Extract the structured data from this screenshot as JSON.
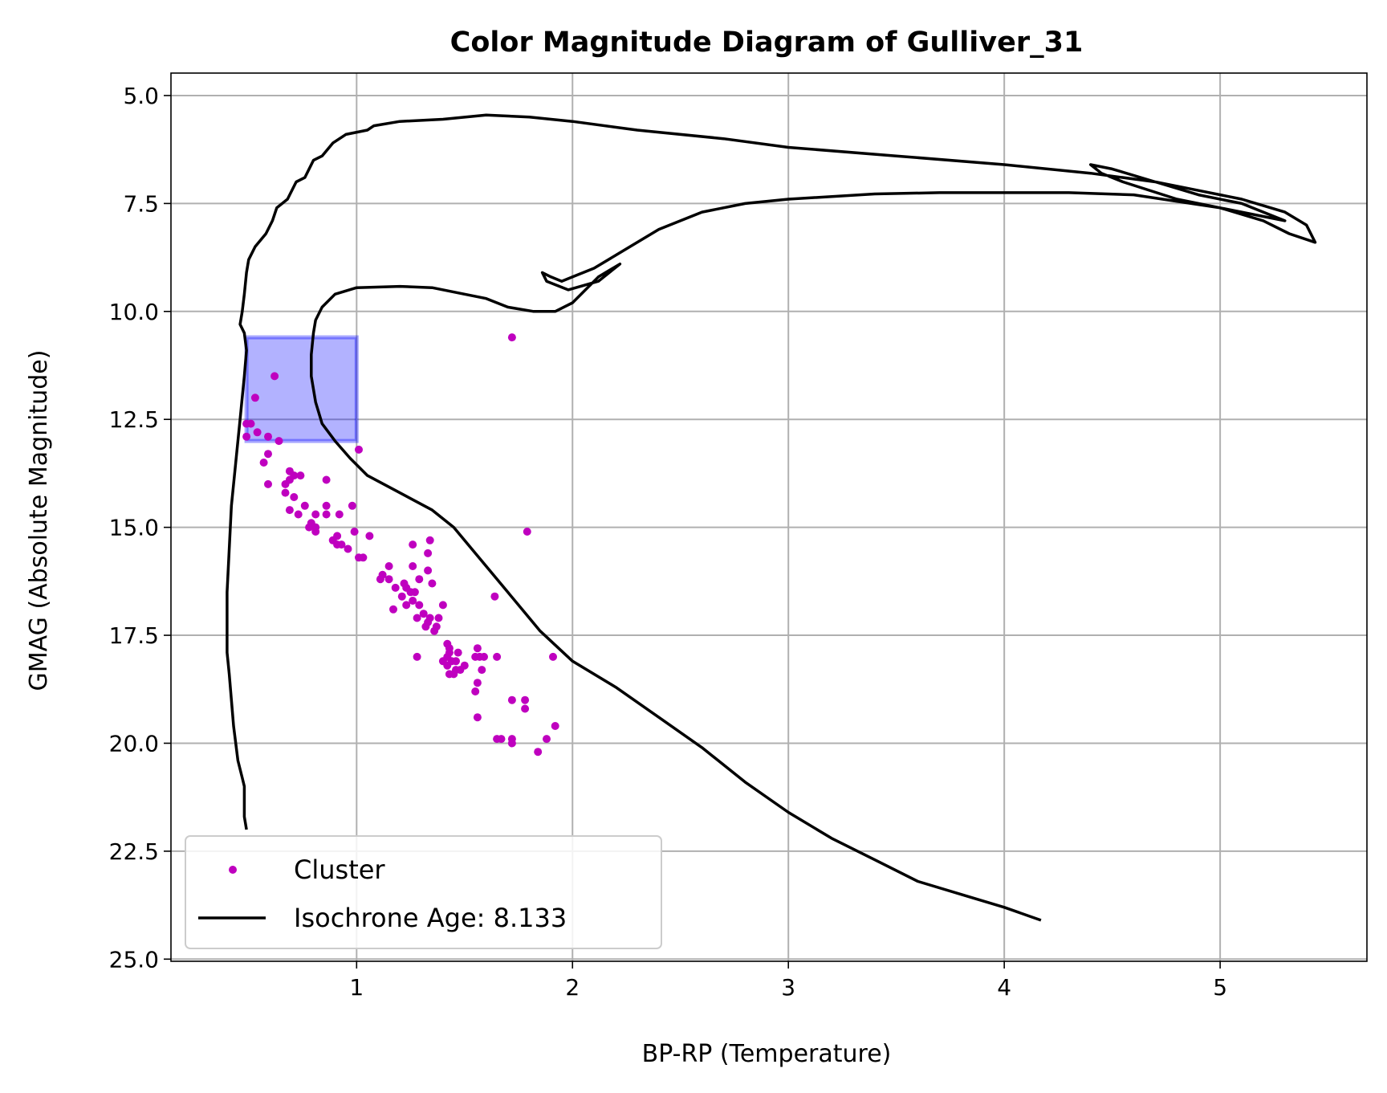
{
  "chart_data": {
    "type": "scatter",
    "title": "Color Magnitude Diagram of Gulliver_31",
    "xlabel": "BP-RP (Temperature)",
    "ylabel": "GMAG (Absolute Magnitude)",
    "xlim": [
      0.14,
      5.68
    ],
    "ylim": [
      25.05,
      4.48
    ],
    "y_inverted": true,
    "x_ticks": [
      1,
      2,
      3,
      4,
      5
    ],
    "x_tick_labels": [
      "1",
      "2",
      "3",
      "4",
      "5"
    ],
    "y_ticks": [
      5.0,
      7.5,
      10.0,
      12.5,
      15.0,
      17.5,
      20.0,
      22.5,
      25.0
    ],
    "y_tick_labels": [
      "5.0",
      "7.5",
      "10.0",
      "12.5",
      "15.0",
      "17.5",
      "20.0",
      "22.5",
      "25.0"
    ],
    "grid": true,
    "legend_position": "lower-left",
    "colors": {
      "cluster": "#bf00bf",
      "isochrone": "#000000",
      "highlight_fill": "#0000ff",
      "highlight_edge": "#0000ff",
      "grid": "#b0b0b0"
    },
    "legend": [
      {
        "label": "Cluster",
        "kind": "marker",
        "color": "#bf00bf"
      },
      {
        "label": "Isochrone Age: 8.133",
        "kind": "line",
        "color": "#000000"
      }
    ],
    "highlight_box": {
      "x0": 0.49,
      "x1": 1.0,
      "y0": 10.6,
      "y1": 13.0,
      "opacity": 0.3
    },
    "series": [
      {
        "name": "Cluster",
        "type": "scatter",
        "points": [
          [
            1.72,
            10.6
          ],
          [
            0.62,
            11.5
          ],
          [
            0.53,
            12.0
          ],
          [
            0.51,
            12.6
          ],
          [
            0.49,
            12.6
          ],
          [
            0.54,
            12.8
          ],
          [
            0.59,
            12.9
          ],
          [
            0.64,
            13.0
          ],
          [
            0.49,
            12.9
          ],
          [
            1.01,
            13.2
          ],
          [
            0.59,
            13.3
          ],
          [
            0.57,
            13.5
          ],
          [
            0.69,
            13.7
          ],
          [
            0.74,
            13.8
          ],
          [
            0.71,
            13.8
          ],
          [
            0.69,
            13.9
          ],
          [
            0.67,
            14.0
          ],
          [
            0.59,
            14.0
          ],
          [
            0.86,
            13.9
          ],
          [
            0.67,
            14.2
          ],
          [
            0.71,
            14.3
          ],
          [
            0.76,
            14.5
          ],
          [
            0.86,
            14.5
          ],
          [
            0.98,
            14.5
          ],
          [
            0.69,
            14.6
          ],
          [
            0.73,
            14.7
          ],
          [
            0.81,
            14.7
          ],
          [
            0.86,
            14.7
          ],
          [
            0.92,
            14.7
          ],
          [
            0.79,
            14.9
          ],
          [
            0.81,
            15.0
          ],
          [
            0.78,
            15.0
          ],
          [
            0.81,
            15.1
          ],
          [
            0.99,
            15.1
          ],
          [
            1.79,
            15.1
          ],
          [
            0.91,
            15.2
          ],
          [
            1.06,
            15.2
          ],
          [
            0.89,
            15.3
          ],
          [
            1.34,
            15.3
          ],
          [
            0.93,
            15.4
          ],
          [
            0.91,
            15.4
          ],
          [
            1.26,
            15.4
          ],
          [
            0.96,
            15.5
          ],
          [
            1.33,
            15.6
          ],
          [
            1.01,
            15.7
          ],
          [
            1.03,
            15.7
          ],
          [
            1.15,
            15.9
          ],
          [
            1.26,
            15.9
          ],
          [
            1.33,
            16.0
          ],
          [
            1.12,
            16.1
          ],
          [
            1.15,
            16.2
          ],
          [
            1.11,
            16.2
          ],
          [
            1.29,
            16.2
          ],
          [
            1.22,
            16.3
          ],
          [
            1.35,
            16.3
          ],
          [
            1.18,
            16.4
          ],
          [
            1.23,
            16.4
          ],
          [
            1.25,
            16.5
          ],
          [
            1.27,
            16.5
          ],
          [
            1.21,
            16.6
          ],
          [
            1.64,
            16.6
          ],
          [
            1.26,
            16.7
          ],
          [
            1.23,
            16.8
          ],
          [
            1.29,
            16.8
          ],
          [
            1.4,
            16.8
          ],
          [
            1.17,
            16.9
          ],
          [
            1.31,
            17.0
          ],
          [
            1.34,
            17.1
          ],
          [
            1.28,
            17.1
          ],
          [
            1.38,
            17.1
          ],
          [
            1.33,
            17.2
          ],
          [
            1.32,
            17.3
          ],
          [
            1.37,
            17.3
          ],
          [
            1.36,
            17.4
          ],
          [
            1.42,
            17.7
          ],
          [
            1.43,
            17.8
          ],
          [
            1.56,
            17.8
          ],
          [
            1.43,
            17.9
          ],
          [
            1.47,
            17.9
          ],
          [
            1.42,
            18.0
          ],
          [
            1.55,
            18.0
          ],
          [
            1.57,
            18.0
          ],
          [
            1.59,
            18.0
          ],
          [
            1.65,
            18.0
          ],
          [
            1.91,
            18.0
          ],
          [
            1.28,
            18.0
          ],
          [
            1.4,
            18.1
          ],
          [
            1.44,
            18.1
          ],
          [
            1.46,
            18.1
          ],
          [
            1.42,
            18.2
          ],
          [
            1.5,
            18.2
          ],
          [
            1.46,
            18.3
          ],
          [
            1.48,
            18.3
          ],
          [
            1.58,
            18.3
          ],
          [
            1.43,
            18.4
          ],
          [
            1.45,
            18.4
          ],
          [
            1.56,
            18.6
          ],
          [
            1.55,
            18.8
          ],
          [
            1.72,
            19.0
          ],
          [
            1.78,
            19.0
          ],
          [
            1.78,
            19.2
          ],
          [
            1.56,
            19.4
          ],
          [
            1.92,
            19.6
          ],
          [
            1.65,
            19.9
          ],
          [
            1.67,
            19.9
          ],
          [
            1.72,
            19.9
          ],
          [
            1.88,
            19.9
          ],
          [
            1.72,
            20.0
          ],
          [
            1.84,
            20.2
          ]
        ]
      },
      {
        "name": "Isochrone Age: 8.133",
        "type": "line",
        "points": [
          [
            0.49,
            22.0
          ],
          [
            0.48,
            21.7
          ],
          [
            0.48,
            21.0
          ],
          [
            0.47,
            20.8
          ],
          [
            0.45,
            20.4
          ],
          [
            0.43,
            19.6
          ],
          [
            0.42,
            19.0
          ],
          [
            0.41,
            18.4
          ],
          [
            0.4,
            17.9
          ],
          [
            0.4,
            17.4
          ],
          [
            0.4,
            16.5
          ],
          [
            0.41,
            15.5
          ],
          [
            0.42,
            14.5
          ],
          [
            0.44,
            13.5
          ],
          [
            0.46,
            12.5
          ],
          [
            0.48,
            11.5
          ],
          [
            0.49,
            10.9
          ],
          [
            0.48,
            10.5
          ],
          [
            0.46,
            10.3
          ],
          [
            0.47,
            10.0
          ],
          [
            0.48,
            9.6
          ],
          [
            0.49,
            9.1
          ],
          [
            0.5,
            8.8
          ],
          [
            0.53,
            8.5
          ],
          [
            0.58,
            8.2
          ],
          [
            0.61,
            7.9
          ],
          [
            0.63,
            7.6
          ],
          [
            0.68,
            7.4
          ],
          [
            0.72,
            7.0
          ],
          [
            0.76,
            6.9
          ],
          [
            0.8,
            6.5
          ],
          [
            0.84,
            6.4
          ],
          [
            0.89,
            6.1
          ],
          [
            0.95,
            5.9
          ],
          [
            1.05,
            5.8
          ],
          [
            1.08,
            5.7
          ],
          [
            1.2,
            5.6
          ],
          [
            1.4,
            5.55
          ],
          [
            1.6,
            5.45
          ],
          [
            1.8,
            5.5
          ],
          [
            2.0,
            5.6
          ],
          [
            2.3,
            5.8
          ],
          [
            2.7,
            6.0
          ],
          [
            3.0,
            6.2
          ],
          [
            3.5,
            6.4
          ],
          [
            4.0,
            6.6
          ],
          [
            4.4,
            6.8
          ],
          [
            4.7,
            7.0
          ],
          [
            4.9,
            7.2
          ],
          [
            5.1,
            7.4
          ],
          [
            5.3,
            7.7
          ],
          [
            5.4,
            8.0
          ],
          [
            5.42,
            8.2
          ],
          [
            5.44,
            8.4
          ],
          [
            5.32,
            8.2
          ],
          [
            5.2,
            7.9
          ],
          [
            5.0,
            7.6
          ],
          [
            4.8,
            7.4
          ],
          [
            4.55,
            7.0
          ],
          [
            4.45,
            6.8
          ],
          [
            4.4,
            6.6
          ],
          [
            4.5,
            6.7
          ],
          [
            4.7,
            7.0
          ],
          [
            4.9,
            7.3
          ],
          [
            5.1,
            7.5
          ],
          [
            5.3,
            7.9
          ],
          [
            5.0,
            7.6
          ],
          [
            4.6,
            7.3
          ],
          [
            4.3,
            7.25
          ],
          [
            4.0,
            7.25
          ],
          [
            3.7,
            7.25
          ],
          [
            3.4,
            7.28
          ],
          [
            3.0,
            7.4
          ],
          [
            2.8,
            7.5
          ],
          [
            2.6,
            7.7
          ],
          [
            2.4,
            8.1
          ],
          [
            2.2,
            8.7
          ],
          [
            2.1,
            9.0
          ],
          [
            2.0,
            9.2
          ],
          [
            1.95,
            9.3
          ],
          [
            1.9,
            9.2
          ],
          [
            1.86,
            9.1
          ],
          [
            1.88,
            9.3
          ],
          [
            1.98,
            9.5
          ],
          [
            2.12,
            9.3
          ],
          [
            2.22,
            8.9
          ],
          [
            2.12,
            9.2
          ],
          [
            2.0,
            9.8
          ],
          [
            1.92,
            10.0
          ],
          [
            1.82,
            10.0
          ],
          [
            1.7,
            9.9
          ],
          [
            1.6,
            9.7
          ],
          [
            1.5,
            9.6
          ],
          [
            1.35,
            9.45
          ],
          [
            1.2,
            9.42
          ],
          [
            1.0,
            9.45
          ],
          [
            0.9,
            9.6
          ],
          [
            0.84,
            9.9
          ],
          [
            0.81,
            10.2
          ],
          [
            0.8,
            10.5
          ],
          [
            0.79,
            11.0
          ],
          [
            0.79,
            11.5
          ],
          [
            0.81,
            12.1
          ],
          [
            0.84,
            12.6
          ],
          [
            0.9,
            13.0
          ],
          [
            0.97,
            13.4
          ],
          [
            1.05,
            13.8
          ],
          [
            1.2,
            14.2
          ],
          [
            1.35,
            14.6
          ],
          [
            1.45,
            15.0
          ],
          [
            1.55,
            15.6
          ],
          [
            1.7,
            16.5
          ],
          [
            1.85,
            17.4
          ],
          [
            2.0,
            18.1
          ],
          [
            2.2,
            18.7
          ],
          [
            2.4,
            19.4
          ],
          [
            2.6,
            20.1
          ],
          [
            2.8,
            20.9
          ],
          [
            3.0,
            21.6
          ],
          [
            3.2,
            22.2
          ],
          [
            3.4,
            22.7
          ],
          [
            3.6,
            23.2
          ],
          [
            3.8,
            23.5
          ],
          [
            4.0,
            23.8
          ],
          [
            4.17,
            24.1
          ]
        ]
      }
    ]
  }
}
